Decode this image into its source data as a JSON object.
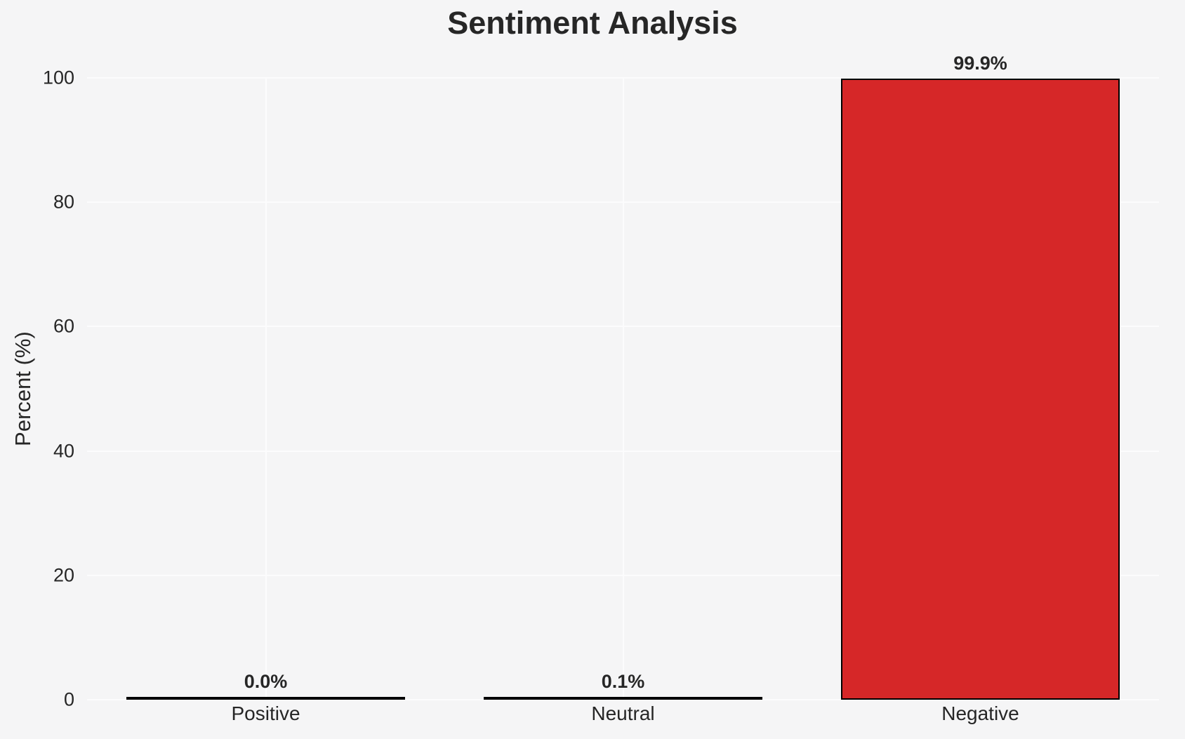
{
  "chart_data": {
    "type": "bar",
    "title": "Sentiment Analysis",
    "ylabel": "Percent (%)",
    "xlabel": "",
    "categories": [
      "Positive",
      "Neutral",
      "Negative"
    ],
    "values": [
      0.0,
      0.1,
      99.9
    ],
    "value_labels": [
      "0.0%",
      "0.1%",
      "99.9%"
    ],
    "yticks": [
      0,
      20,
      40,
      60,
      80,
      100
    ],
    "ylim": [
      0,
      100
    ],
    "grid": "both-x-and-y",
    "legend_position": "none",
    "bar_fill_color": "#d62728",
    "bar_edge_color": "#000000",
    "gridline_color": "#fcfcfd",
    "background_color": "#f5f5f6",
    "text_color": "#262626"
  }
}
